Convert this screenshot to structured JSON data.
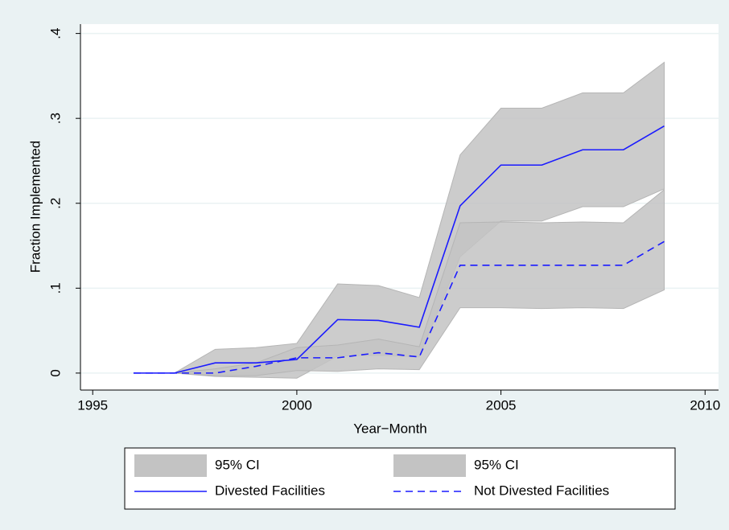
{
  "chart_data": {
    "type": "line",
    "x": [
      1996,
      1997,
      1998,
      1999,
      2000,
      2001,
      2002,
      2003,
      2004,
      2005,
      2006,
      2007,
      2008,
      2009
    ],
    "series": [
      {
        "name": "95% CI",
        "type": "band",
        "color": "#c3c3c3",
        "upper": [
          0,
          0,
          0.028,
          0.03,
          0.035,
          0.105,
          0.103,
          0.089,
          0.257,
          0.312,
          0.312,
          0.33,
          0.33,
          0.366
        ],
        "lower": [
          0,
          0,
          -0.004,
          -0.005,
          -0.006,
          0.02,
          0.021,
          0.019,
          0.137,
          0.179,
          0.179,
          0.196,
          0.196,
          0.217
        ]
      },
      {
        "name": "95% CI",
        "type": "band",
        "color": "#c3c3c3",
        "upper": [
          0,
          0,
          0.005,
          0.012,
          0.03,
          0.033,
          0.04,
          0.031,
          0.177,
          0.178,
          0.177,
          0.178,
          0.177,
          0.216
        ],
        "lower": [
          0,
          0,
          -0.003,
          -0.003,
          0.003,
          0.002,
          0.005,
          0.004,
          0.077,
          0.077,
          0.076,
          0.077,
          0.076,
          0.098
        ]
      },
      {
        "name": "Divested Facilities",
        "type": "line",
        "color": "#1a1aff",
        "dashed": false,
        "values": [
          0,
          0,
          0.012,
          0.012,
          0.016,
          0.063,
          0.062,
          0.054,
          0.197,
          0.245,
          0.245,
          0.263,
          0.263,
          0.291
        ]
      },
      {
        "name": "Not Divested Facilities",
        "type": "line",
        "color": "#1a1aff",
        "dashed": true,
        "values": [
          0,
          0,
          0,
          0.008,
          0.018,
          0.018,
          0.024,
          0.019,
          0.127,
          0.127,
          0.127,
          0.127,
          0.127,
          0.155
        ]
      }
    ],
    "xlabel": "Year−Month",
    "ylabel": "Fraction Implemented",
    "xlim": [
      1994.7,
      2010.33
    ],
    "xticks": [
      1995,
      2000,
      2005,
      2010
    ],
    "ylim": [
      -0.02,
      0.411
    ],
    "yticks": [
      0,
      {
        "value": 0.1,
        "label": ".1"
      },
      {
        "value": 0.2,
        "label": ".2"
      },
      {
        "value": 0.3,
        "label": ".3"
      },
      {
        "value": 0.4,
        "label": ".4"
      }
    ],
    "grid": true,
    "legend": "bottom"
  }
}
